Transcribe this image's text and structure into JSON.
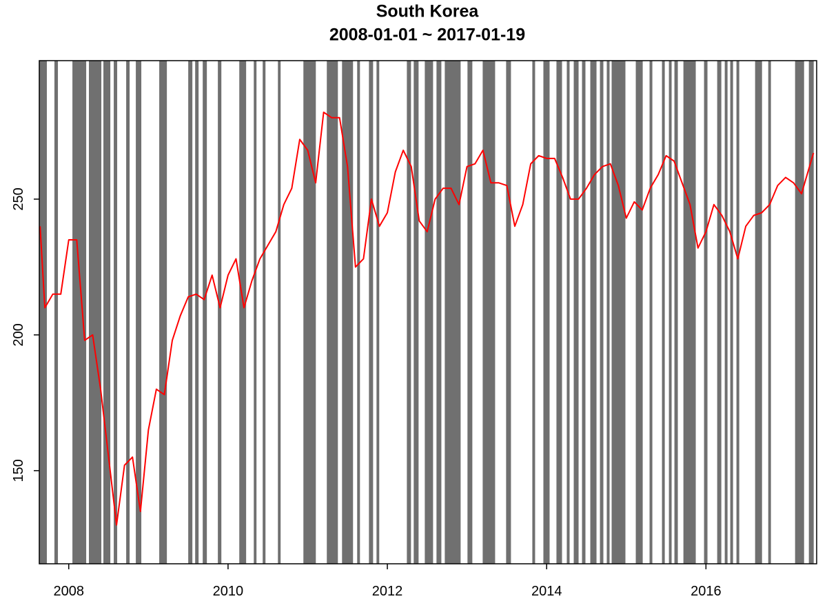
{
  "chart_data": {
    "type": "line",
    "title": "South Korea",
    "subtitle": "2008-01-01 ~ 2017-01-19",
    "xlim": [
      2007.63,
      2017.39
    ],
    "ylim": [
      115.7,
      301
    ],
    "xticks": [
      2008,
      2010,
      2012,
      2014,
      2016
    ],
    "yticks": [
      150,
      200,
      250
    ],
    "shade_color": "#707070",
    "shaded_periods": [
      [
        2007.63,
        2007.725
      ],
      [
        2007.82,
        2007.864
      ],
      [
        2008.046,
        2008.219
      ],
      [
        2008.253,
        2008.409
      ],
      [
        2008.435,
        2008.522
      ],
      [
        2008.565,
        2008.608
      ],
      [
        2008.721,
        2008.764
      ],
      [
        2008.842,
        2008.911
      ],
      [
        2009.136,
        2009.232
      ],
      [
        2009.5,
        2009.552
      ],
      [
        2009.587,
        2009.63
      ],
      [
        2009.682,
        2009.734
      ],
      [
        2009.872,
        2009.916
      ],
      [
        2010.141,
        2010.227
      ],
      [
        2010.323,
        2010.357
      ],
      [
        2010.435,
        2010.47
      ],
      [
        2010.626,
        2010.66
      ],
      [
        2010.946,
        2011.102
      ],
      [
        2011.24,
        2011.379
      ],
      [
        2011.431,
        2011.569
      ],
      [
        2011.621,
        2011.656
      ],
      [
        2011.769,
        2011.821
      ],
      [
        2011.864,
        2011.898
      ],
      [
        2012.245,
        2012.297
      ],
      [
        2012.331,
        2012.392
      ],
      [
        2012.47,
        2012.574
      ],
      [
        2012.617,
        2012.678
      ],
      [
        2012.721,
        2012.92
      ],
      [
        2013.006,
        2013.067
      ],
      [
        2013.197,
        2013.353
      ],
      [
        2013.491,
        2013.552
      ],
      [
        2013.82,
        2013.855
      ],
      [
        2013.959,
        2014.037
      ],
      [
        2014.123,
        2014.193
      ],
      [
        2014.253,
        2014.288
      ],
      [
        2014.34,
        2014.401
      ],
      [
        2014.444,
        2014.487
      ],
      [
        2014.548,
        2014.626
      ],
      [
        2014.669,
        2014.712
      ],
      [
        2014.755,
        2014.79
      ],
      [
        2014.816,
        2014.989
      ],
      [
        2015.119,
        2015.206
      ],
      [
        2015.292,
        2015.327
      ],
      [
        2015.448,
        2015.483
      ],
      [
        2015.535,
        2015.569
      ],
      [
        2015.604,
        2015.647
      ],
      [
        2015.717,
        2015.872
      ],
      [
        2015.976,
        2016.019
      ],
      [
        2016.141,
        2016.193
      ],
      [
        2016.236,
        2016.271
      ],
      [
        2016.305,
        2016.34
      ],
      [
        2016.383,
        2016.418
      ],
      [
        2016.617,
        2016.704
      ],
      [
        2016.782,
        2016.816
      ],
      [
        2017.119,
        2017.232
      ],
      [
        2017.292,
        2017.353
      ]
    ],
    "series": [
      {
        "color": "#ff0000",
        "x": [
          2007.64,
          2007.7,
          2007.8,
          2007.9,
          2008.0,
          2008.1,
          2008.2,
          2008.3,
          2008.4,
          2008.5,
          2008.6,
          2008.7,
          2008.8,
          2008.9,
          2009.0,
          2009.1,
          2009.2,
          2009.3,
          2009.4,
          2009.5,
          2009.6,
          2009.7,
          2009.8,
          2009.9,
          2010.0,
          2010.1,
          2010.2,
          2010.3,
          2010.4,
          2010.5,
          2010.6,
          2010.7,
          2010.8,
          2010.9,
          2011.0,
          2011.1,
          2011.2,
          2011.3,
          2011.4,
          2011.5,
          2011.6,
          2011.7,
          2011.8,
          2011.9,
          2012.0,
          2012.1,
          2012.2,
          2012.3,
          2012.4,
          2012.5,
          2012.6,
          2012.7,
          2012.8,
          2012.9,
          2013.0,
          2013.1,
          2013.2,
          2013.3,
          2013.4,
          2013.5,
          2013.6,
          2013.7,
          2013.8,
          2013.9,
          2014.0,
          2014.1,
          2014.2,
          2014.3,
          2014.4,
          2014.5,
          2014.6,
          2014.7,
          2014.8,
          2014.9,
          2015.0,
          2015.1,
          2015.2,
          2015.3,
          2015.4,
          2015.5,
          2015.6,
          2015.7,
          2015.8,
          2015.9,
          2016.0,
          2016.1,
          2016.2,
          2016.3,
          2016.4,
          2016.5,
          2016.6,
          2016.7,
          2016.8,
          2016.9,
          2017.0,
          2017.1,
          2017.2,
          2017.3,
          2017.35
        ],
        "values": [
          240,
          210,
          215,
          215,
          235,
          235,
          198,
          200,
          180,
          155,
          130,
          152,
          155,
          135,
          165,
          180,
          178,
          198,
          207,
          214,
          215,
          213,
          222,
          210,
          222,
          228,
          210,
          220,
          228,
          233,
          238,
          248,
          254,
          272,
          268,
          256,
          282,
          280,
          280,
          262,
          225,
          228,
          250,
          240,
          245,
          260,
          268,
          262,
          242,
          238,
          250,
          254,
          254,
          248,
          262,
          263,
          268,
          256,
          256,
          255,
          240,
          248,
          263,
          266,
          265,
          265,
          258,
          250,
          250,
          254,
          259,
          262,
          263,
          255,
          243,
          249,
          246,
          254,
          259,
          266,
          264,
          256,
          248,
          232,
          238,
          248,
          244,
          238,
          228,
          240,
          244,
          245,
          248,
          255,
          258,
          256,
          252,
          262,
          267
        ]
      }
    ]
  }
}
